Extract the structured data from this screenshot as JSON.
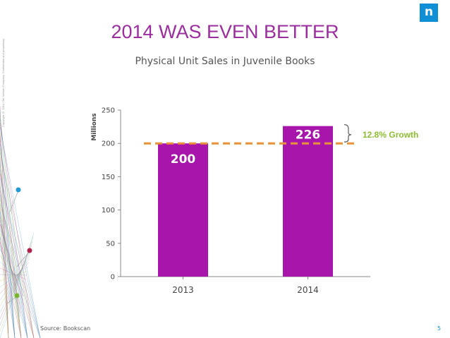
{
  "slide": {
    "title": "2014 WAS EVEN BETTER",
    "source": "Source: Bookscan",
    "page_number": "5",
    "logo_glyph": "n",
    "copyright": "Copyright © 2014 The Nielsen Company. Confidential and proprietary."
  },
  "colors": {
    "accent": "#9b2d9f",
    "bar": "#a815ab",
    "dashed_line": "#e8923a",
    "growth": "#8cbd2f",
    "logo": "#0f8fd6"
  },
  "chart_data": {
    "type": "bar",
    "title": "Physical Unit Sales in Juvenile Books",
    "ylabel": "Millions",
    "xlabel": "",
    "categories": [
      "2013",
      "2014"
    ],
    "values": [
      200,
      226
    ],
    "data_labels": [
      "200",
      "226"
    ],
    "ylim": [
      0,
      250
    ],
    "yticks": [
      "0",
      "50",
      "100",
      "150",
      "200",
      "250"
    ],
    "grid": false,
    "legend": "none",
    "reference_line": {
      "value": 200,
      "style": "dashed"
    },
    "annotation": {
      "text": "12.8% Growth",
      "between": [
        200,
        226
      ]
    }
  }
}
